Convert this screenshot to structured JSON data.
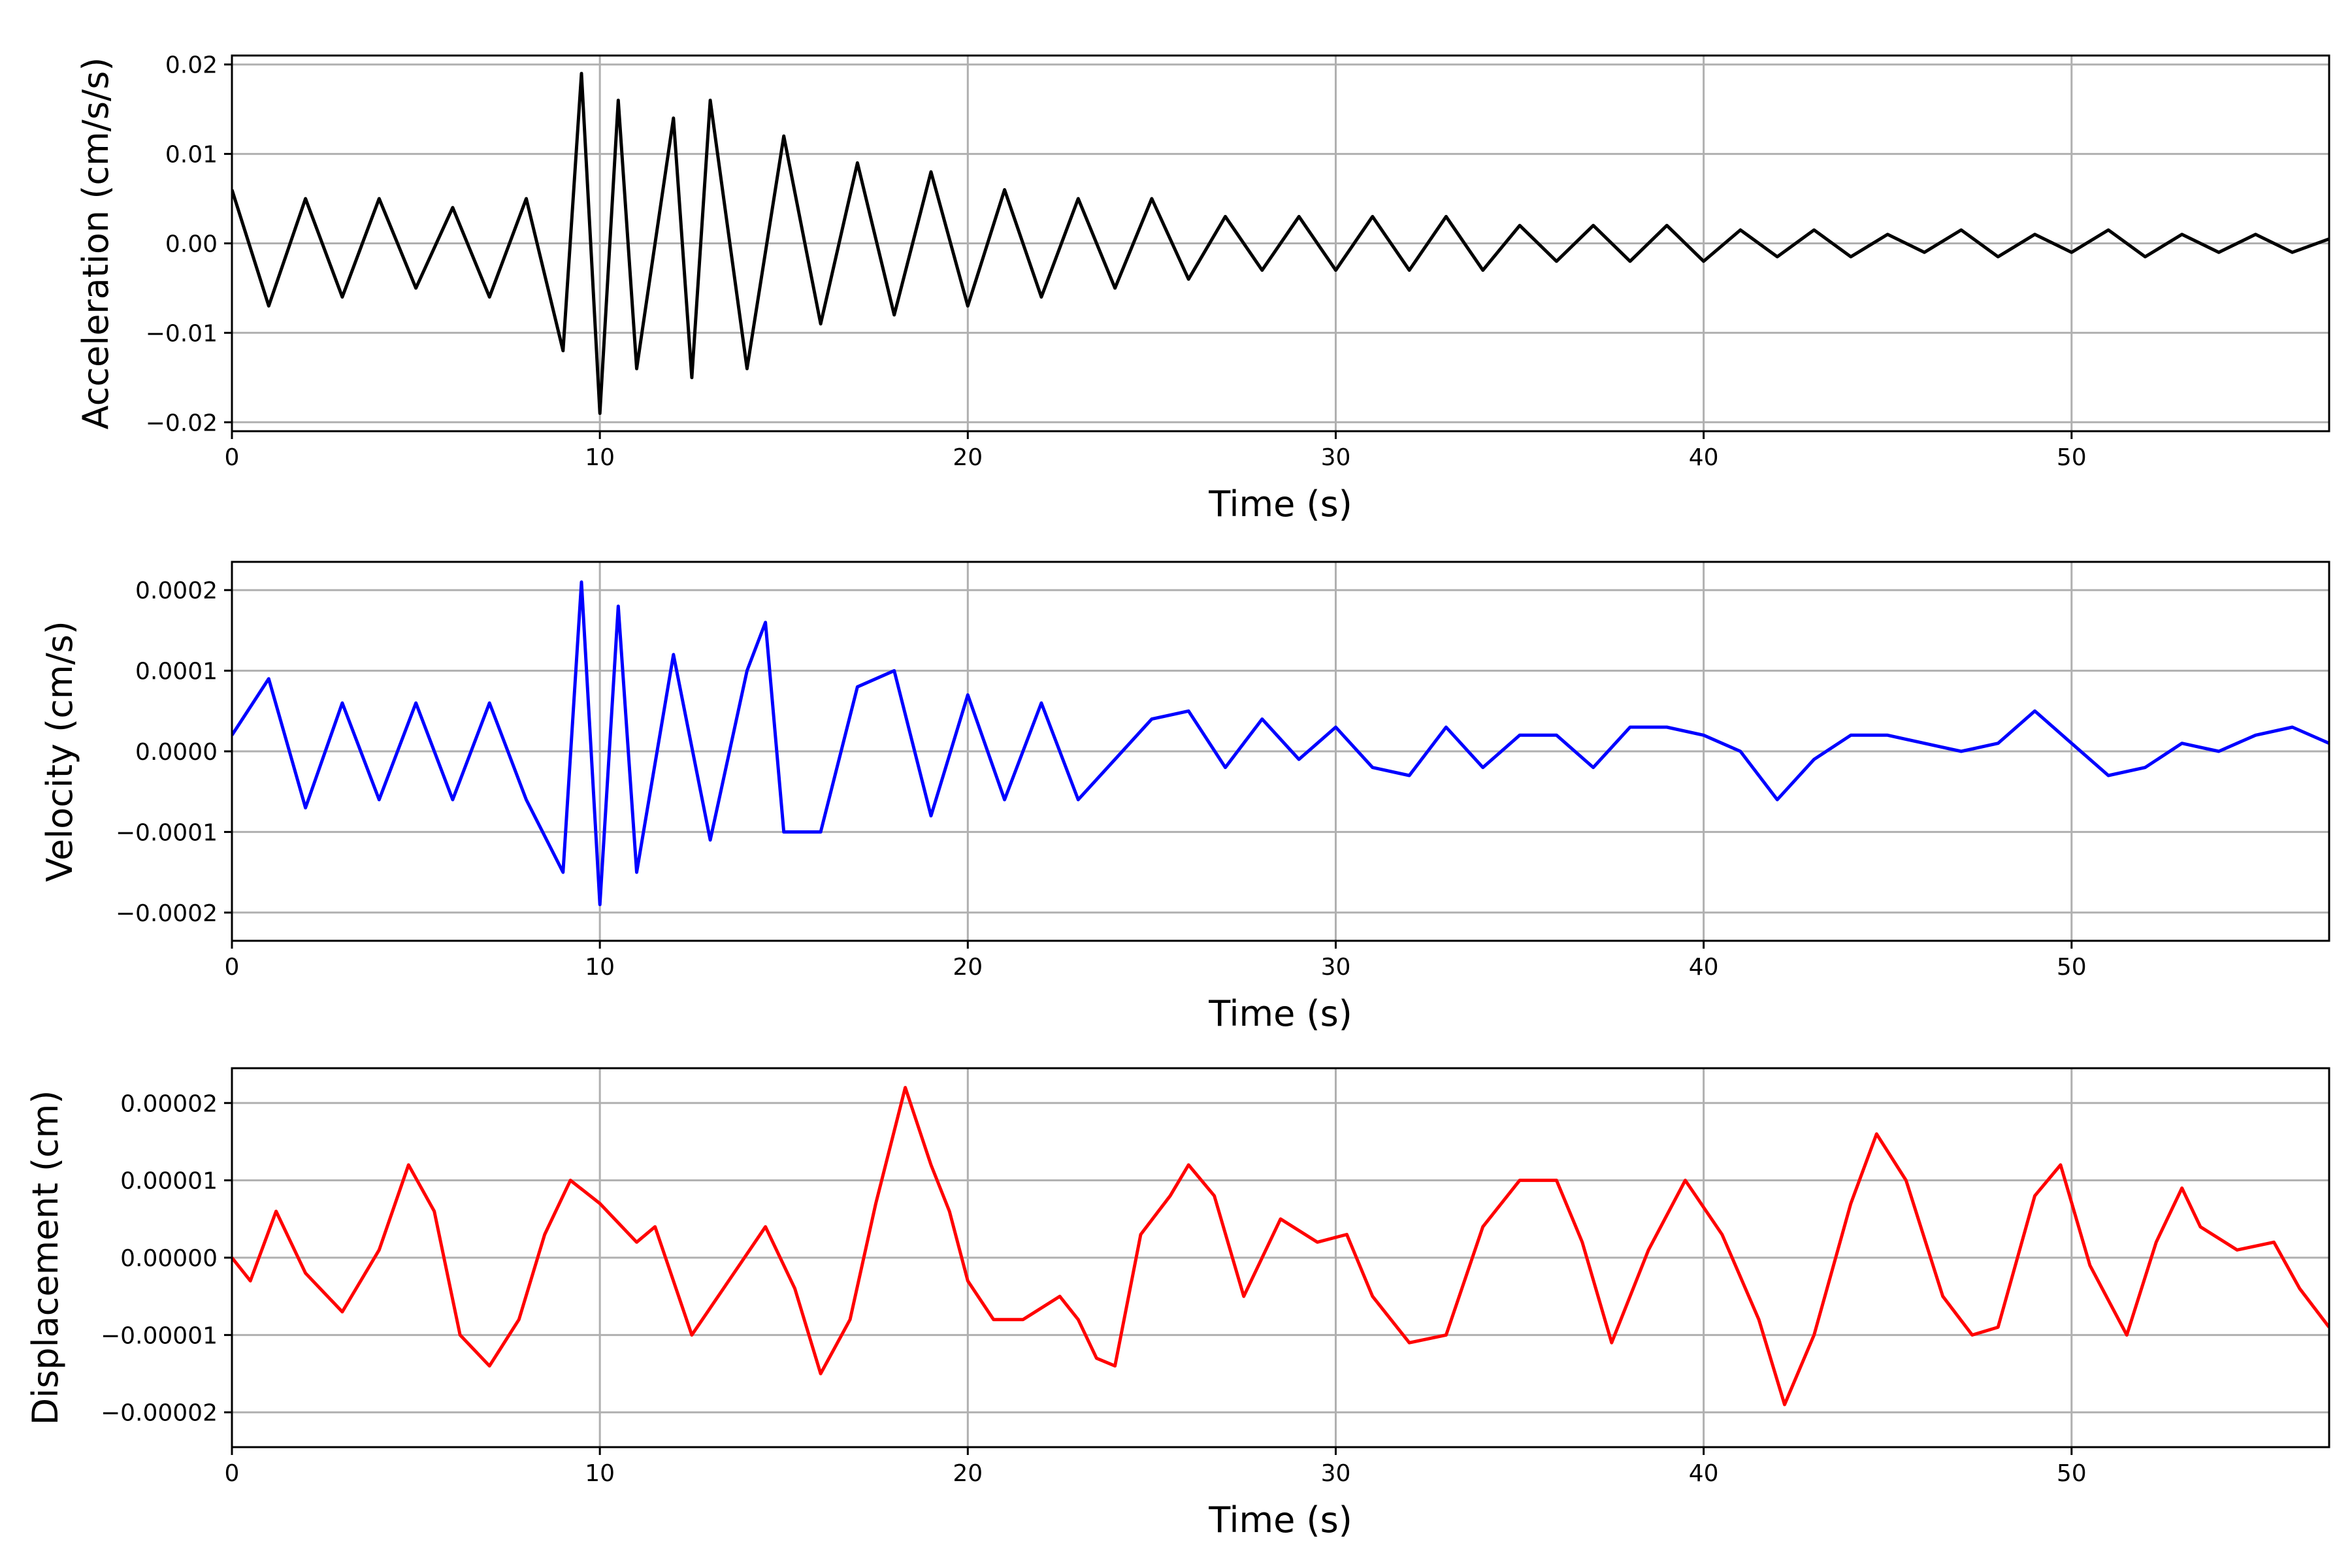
{
  "chart_data": [
    {
      "type": "line",
      "xlabel": "Time (s)",
      "ylabel": "Acceleration (cm/s/s)",
      "xlim": [
        0,
        57
      ],
      "ylim": [
        -0.021,
        0.021
      ],
      "xticks": [
        0,
        10,
        20,
        30,
        40,
        50
      ],
      "yticks": [
        -0.02,
        -0.01,
        0.0,
        0.01,
        0.02
      ],
      "ytick_labels": [
        "−0.02",
        "−0.01",
        "0.00",
        "0.01",
        "0.02"
      ],
      "grid": true,
      "color": "#000000",
      "x": [
        0,
        1,
        2,
        3,
        4,
        5,
        6,
        7,
        8,
        9,
        9.5,
        10,
        10.5,
        11,
        12,
        12.5,
        13,
        14,
        15,
        16,
        17,
        18,
        19,
        20,
        21,
        22,
        23,
        24,
        25,
        26,
        27,
        28,
        29,
        30,
        31,
        32,
        33,
        34,
        35,
        36,
        37,
        38,
        39,
        40,
        41,
        42,
        43,
        44,
        45,
        46,
        47,
        48,
        49,
        50,
        51,
        52,
        53,
        54,
        55,
        56,
        57
      ],
      "y": [
        0.006,
        -0.007,
        0.005,
        -0.006,
        0.005,
        -0.005,
        0.004,
        -0.006,
        0.005,
        -0.012,
        0.019,
        -0.019,
        0.016,
        -0.014,
        0.014,
        -0.015,
        0.016,
        -0.014,
        0.012,
        -0.009,
        0.009,
        -0.008,
        0.008,
        -0.007,
        0.006,
        -0.006,
        0.005,
        -0.005,
        0.005,
        -0.004,
        0.003,
        -0.003,
        0.003,
        -0.003,
        0.003,
        -0.003,
        0.003,
        -0.003,
        0.002,
        -0.002,
        0.002,
        -0.002,
        0.002,
        -0.002,
        0.0015,
        -0.0015,
        0.0015,
        -0.0015,
        0.001,
        -0.001,
        0.0015,
        -0.0015,
        0.001,
        -0.001,
        0.0015,
        -0.0015,
        0.001,
        -0.001,
        0.001,
        -0.001,
        0.0005
      ]
    },
    {
      "type": "line",
      "xlabel": "Time (s)",
      "ylabel": "Velocity (cm/s)",
      "xlim": [
        0,
        57
      ],
      "ylim": [
        -0.000235,
        0.000235
      ],
      "xticks": [
        0,
        10,
        20,
        30,
        40,
        50
      ],
      "yticks": [
        -0.0002,
        -0.0001,
        0.0,
        0.0001,
        0.0002
      ],
      "ytick_labels": [
        "−0.0002",
        "−0.0001",
        "0.0000",
        "0.0001",
        "0.0002"
      ],
      "grid": true,
      "color": "#0000ff",
      "x": [
        0,
        1,
        2,
        3,
        4,
        5,
        6,
        7,
        8,
        9,
        9.5,
        10,
        10.5,
        11,
        12,
        13,
        14,
        14.5,
        15,
        16,
        17,
        18,
        19,
        20,
        21,
        22,
        23,
        24,
        25,
        26,
        27,
        28,
        29,
        30,
        31,
        32,
        33,
        34,
        35,
        36,
        37,
        38,
        39,
        40,
        41,
        42,
        43,
        44,
        45,
        46,
        47,
        48,
        49,
        50,
        51,
        52,
        53,
        54,
        55,
        56,
        57
      ],
      "y": [
        2e-05,
        9e-05,
        -7e-05,
        6e-05,
        -6e-05,
        6e-05,
        -6e-05,
        6e-05,
        -6e-05,
        -0.00015,
        0.00021,
        -0.00019,
        0.00018,
        -0.00015,
        0.00012,
        -0.00011,
        0.0001,
        0.00016,
        -0.0001,
        -0.0001,
        8e-05,
        0.0001,
        -8e-05,
        7e-05,
        -6e-05,
        6e-05,
        -6e-05,
        -1e-05,
        4e-05,
        5e-05,
        -2e-05,
        4e-05,
        -1e-05,
        3e-05,
        -2e-05,
        -3e-05,
        3e-05,
        -2e-05,
        2e-05,
        2e-05,
        -2e-05,
        3e-05,
        3e-05,
        2e-05,
        0.0,
        -6e-05,
        -1e-05,
        2e-05,
        2e-05,
        1e-05,
        0.0,
        1e-05,
        5e-05,
        1e-05,
        -3e-05,
        -2e-05,
        1e-05,
        0.0,
        2e-05,
        3e-05,
        1e-05
      ]
    },
    {
      "type": "line",
      "xlabel": "Time (s)",
      "ylabel": "Displacement (cm)",
      "xlim": [
        0,
        57
      ],
      "ylim": [
        -2.45e-05,
        2.45e-05
      ],
      "xticks": [
        0,
        10,
        20,
        30,
        40,
        50
      ],
      "yticks": [
        -2e-05,
        -1e-05,
        0.0,
        1e-05,
        2e-05
      ],
      "ytick_labels": [
        "−0.00002",
        "−0.00001",
        "0.00000",
        "0.00001",
        "0.00002"
      ],
      "grid": true,
      "color": "#ff0000",
      "x": [
        0,
        0.5,
        1.2,
        2,
        3,
        4,
        4.8,
        5.5,
        6.2,
        7,
        7.8,
        8.5,
        9.2,
        10,
        11,
        11.5,
        12.5,
        13.5,
        14.5,
        15.3,
        16,
        16.8,
        17.5,
        18.3,
        19,
        19.5,
        20,
        20.7,
        21.5,
        22.5,
        23,
        23.5,
        24,
        24.7,
        25.5,
        26,
        26.7,
        27.5,
        28.5,
        29.5,
        30.3,
        31,
        32,
        33,
        34,
        35,
        36,
        36.7,
        37.5,
        38.5,
        39.5,
        40.5,
        41.5,
        42.2,
        43,
        44,
        44.7,
        45.5,
        46.5,
        47.3,
        48,
        49,
        49.7,
        50.5,
        51.5,
        52.3,
        53,
        53.5,
        54.5,
        55.5,
        56.2,
        57
      ],
      "y": [
        0.0,
        -3e-06,
        6e-06,
        -2e-06,
        -7e-06,
        1e-06,
        1.2e-05,
        6e-06,
        -1e-05,
        -1.4e-05,
        -8e-06,
        3e-06,
        1e-05,
        7e-06,
        2e-06,
        4e-06,
        -1e-05,
        -3e-06,
        4e-06,
        -4e-06,
        -1.5e-05,
        -8e-06,
        7e-06,
        2.2e-05,
        1.2e-05,
        6e-06,
        -3e-06,
        -8e-06,
        -8e-06,
        -5e-06,
        -8e-06,
        -1.3e-05,
        -1.4e-05,
        3e-06,
        8e-06,
        1.2e-05,
        8e-06,
        -5e-06,
        5e-06,
        2e-06,
        3e-06,
        -5e-06,
        -1.1e-05,
        -1e-05,
        4e-06,
        1e-05,
        1e-05,
        2e-06,
        -1.1e-05,
        1e-06,
        1e-05,
        3e-06,
        -8e-06,
        -1.9e-05,
        -1e-05,
        7e-06,
        1.6e-05,
        1e-05,
        -5e-06,
        -1e-05,
        -9e-06,
        8e-06,
        1.2e-05,
        -1e-06,
        -1e-05,
        2e-06,
        9e-06,
        4e-06,
        1e-06,
        2e-06,
        -4e-06,
        -9e-06
      ]
    }
  ]
}
